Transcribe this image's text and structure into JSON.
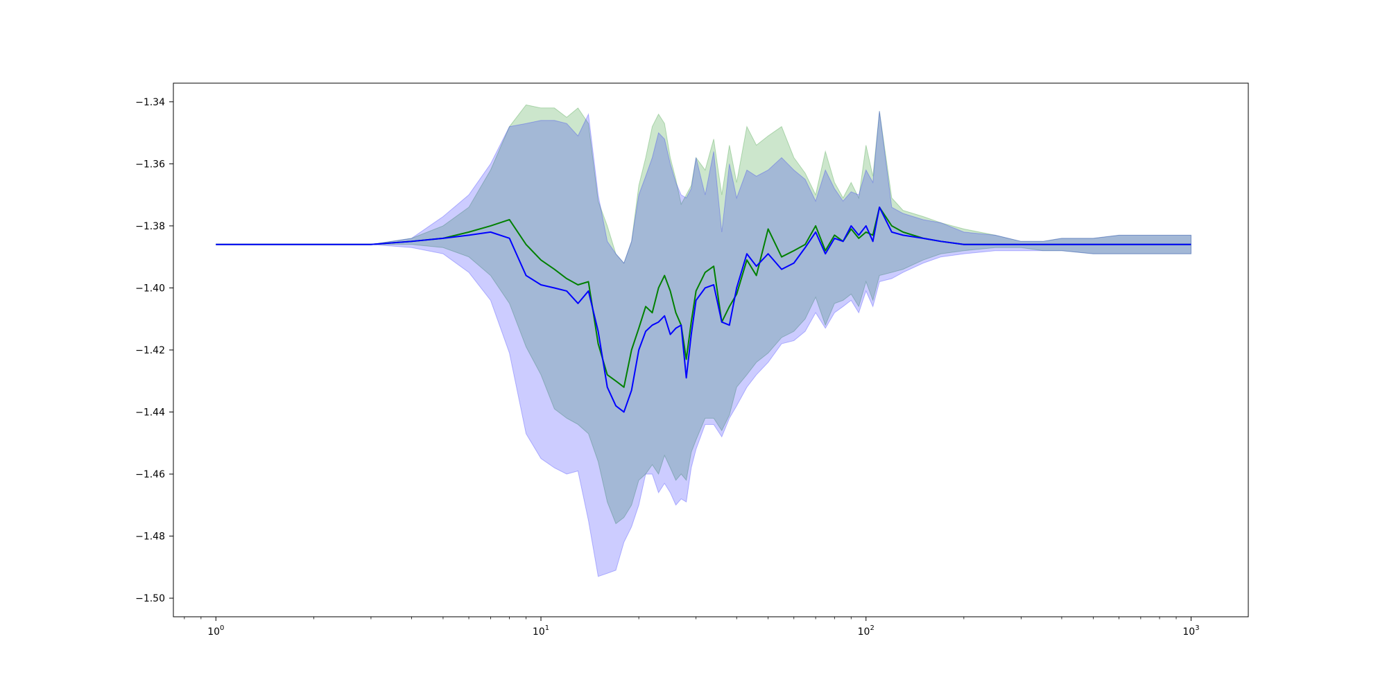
{
  "chart_data": {
    "type": "line",
    "title": "",
    "xlabel": "",
    "ylabel": "",
    "xscale": "log",
    "xlim": [
      0.74,
      1500
    ],
    "ylim": [
      -1.506,
      -1.334
    ],
    "grid": false,
    "legend": "none",
    "x_ticks": [
      1,
      10,
      100,
      1000
    ],
    "x_tick_labels": [
      {
        "base": "10",
        "exp": "0"
      },
      {
        "base": "10",
        "exp": "1"
      },
      {
        "base": "10",
        "exp": "2"
      },
      {
        "base": "10",
        "exp": "3"
      }
    ],
    "y_ticks": [
      -1.34,
      -1.36,
      -1.38,
      -1.4,
      -1.42,
      -1.44,
      -1.46,
      -1.48,
      -1.5
    ],
    "y_tick_labels": [
      "−1.34",
      "−1.36",
      "−1.38",
      "−1.40",
      "−1.42",
      "−1.44",
      "−1.46",
      "−1.48",
      "−1.50"
    ],
    "series": [
      {
        "color": "#008000",
        "band_color": "#008000",
        "band_opacity": 0.2,
        "x": [
          1,
          2,
          3,
          4,
          5,
          6,
          7,
          8,
          9,
          10,
          11,
          12,
          13,
          14,
          15,
          16,
          17,
          18,
          19,
          20,
          21,
          22,
          23,
          24,
          25,
          26,
          27,
          28,
          29,
          30,
          32,
          34,
          36,
          38,
          40,
          43,
          46,
          50,
          55,
          60,
          65,
          70,
          75,
          80,
          85,
          90,
          95,
          100,
          105,
          110,
          120,
          130,
          150,
          170,
          200,
          250,
          300,
          350,
          400,
          500,
          600,
          700,
          800,
          900,
          1000
        ],
        "mean": [
          -1.386,
          -1.386,
          -1.386,
          -1.385,
          -1.384,
          -1.382,
          -1.38,
          -1.378,
          -1.386,
          -1.391,
          -1.394,
          -1.397,
          -1.399,
          -1.398,
          -1.418,
          -1.428,
          -1.43,
          -1.432,
          -1.42,
          -1.413,
          -1.406,
          -1.408,
          -1.4,
          -1.396,
          -1.401,
          -1.408,
          -1.412,
          -1.423,
          -1.411,
          -1.401,
          -1.395,
          -1.393,
          -1.411,
          -1.406,
          -1.402,
          -1.391,
          -1.396,
          -1.381,
          -1.39,
          -1.388,
          -1.386,
          -1.38,
          -1.388,
          -1.383,
          -1.385,
          -1.381,
          -1.384,
          -1.382,
          -1.383,
          -1.374,
          -1.38,
          -1.382,
          -1.384,
          -1.385,
          -1.386,
          -1.386,
          -1.386,
          -1.386,
          -1.386,
          -1.386,
          -1.386,
          -1.386,
          -1.386,
          -1.386,
          -1.386
        ],
        "upper": [
          -1.386,
          -1.386,
          -1.386,
          -1.384,
          -1.38,
          -1.374,
          -1.362,
          -1.348,
          -1.341,
          -1.342,
          -1.342,
          -1.345,
          -1.342,
          -1.347,
          -1.372,
          -1.38,
          -1.389,
          -1.392,
          -1.385,
          -1.367,
          -1.358,
          -1.348,
          -1.344,
          -1.347,
          -1.358,
          -1.365,
          -1.373,
          -1.37,
          -1.367,
          -1.358,
          -1.362,
          -1.352,
          -1.37,
          -1.354,
          -1.366,
          -1.348,
          -1.354,
          -1.351,
          -1.348,
          -1.358,
          -1.363,
          -1.37,
          -1.356,
          -1.366,
          -1.371,
          -1.366,
          -1.371,
          -1.354,
          -1.364,
          -1.343,
          -1.371,
          -1.375,
          -1.377,
          -1.379,
          -1.381,
          -1.383,
          -1.385,
          -1.385,
          -1.384,
          -1.384,
          -1.383,
          -1.383,
          -1.383,
          -1.383,
          -1.383
        ],
        "lower": [
          -1.386,
          -1.386,
          -1.386,
          -1.386,
          -1.387,
          -1.39,
          -1.396,
          -1.405,
          -1.419,
          -1.428,
          -1.439,
          -1.442,
          -1.444,
          -1.447,
          -1.456,
          -1.469,
          -1.476,
          -1.474,
          -1.47,
          -1.462,
          -1.46,
          -1.457,
          -1.46,
          -1.454,
          -1.458,
          -1.462,
          -1.46,
          -1.462,
          -1.453,
          -1.449,
          -1.442,
          -1.442,
          -1.446,
          -1.441,
          -1.432,
          -1.428,
          -1.424,
          -1.421,
          -1.416,
          -1.414,
          -1.41,
          -1.403,
          -1.412,
          -1.405,
          -1.404,
          -1.402,
          -1.406,
          -1.398,
          -1.404,
          -1.396,
          -1.395,
          -1.394,
          -1.391,
          -1.389,
          -1.388,
          -1.387,
          -1.387,
          -1.388,
          -1.388,
          -1.389,
          -1.389,
          -1.389,
          -1.389,
          -1.389,
          -1.389
        ]
      },
      {
        "color": "#0000ff",
        "band_color": "#0000ff",
        "band_opacity": 0.2,
        "x": [
          1,
          2,
          3,
          4,
          5,
          6,
          7,
          8,
          9,
          10,
          11,
          12,
          13,
          14,
          15,
          16,
          17,
          18,
          19,
          20,
          21,
          22,
          23,
          24,
          25,
          26,
          27,
          28,
          29,
          30,
          32,
          34,
          36,
          38,
          40,
          43,
          46,
          50,
          55,
          60,
          65,
          70,
          75,
          80,
          85,
          90,
          95,
          100,
          105,
          110,
          120,
          130,
          150,
          170,
          200,
          250,
          300,
          350,
          400,
          500,
          600,
          700,
          800,
          900,
          1000
        ],
        "mean": [
          -1.386,
          -1.386,
          -1.386,
          -1.385,
          -1.384,
          -1.383,
          -1.382,
          -1.384,
          -1.396,
          -1.399,
          -1.4,
          -1.401,
          -1.405,
          -1.401,
          -1.414,
          -1.432,
          -1.438,
          -1.44,
          -1.433,
          -1.42,
          -1.414,
          -1.412,
          -1.411,
          -1.409,
          -1.415,
          -1.413,
          -1.412,
          -1.429,
          -1.415,
          -1.404,
          -1.4,
          -1.399,
          -1.411,
          -1.412,
          -1.4,
          -1.389,
          -1.393,
          -1.389,
          -1.394,
          -1.392,
          -1.387,
          -1.382,
          -1.389,
          -1.384,
          -1.385,
          -1.38,
          -1.383,
          -1.38,
          -1.385,
          -1.374,
          -1.382,
          -1.383,
          -1.384,
          -1.385,
          -1.386,
          -1.386,
          -1.386,
          -1.386,
          -1.386,
          -1.386,
          -1.386,
          -1.386,
          -1.386,
          -1.386,
          -1.386
        ],
        "upper": [
          -1.386,
          -1.386,
          -1.386,
          -1.384,
          -1.377,
          -1.37,
          -1.36,
          -1.348,
          -1.347,
          -1.346,
          -1.346,
          -1.347,
          -1.351,
          -1.344,
          -1.37,
          -1.385,
          -1.389,
          -1.392,
          -1.385,
          -1.37,
          -1.364,
          -1.358,
          -1.35,
          -1.352,
          -1.36,
          -1.366,
          -1.37,
          -1.371,
          -1.368,
          -1.358,
          -1.37,
          -1.356,
          -1.382,
          -1.36,
          -1.371,
          -1.362,
          -1.364,
          -1.362,
          -1.358,
          -1.362,
          -1.365,
          -1.372,
          -1.362,
          -1.368,
          -1.372,
          -1.369,
          -1.37,
          -1.362,
          -1.366,
          -1.343,
          -1.374,
          -1.376,
          -1.378,
          -1.379,
          -1.382,
          -1.383,
          -1.385,
          -1.385,
          -1.384,
          -1.384,
          -1.383,
          -1.383,
          -1.383,
          -1.383,
          -1.383
        ],
        "lower": [
          -1.386,
          -1.386,
          -1.386,
          -1.387,
          -1.389,
          -1.395,
          -1.404,
          -1.421,
          -1.447,
          -1.455,
          -1.458,
          -1.46,
          -1.459,
          -1.475,
          -1.493,
          -1.492,
          -1.491,
          -1.482,
          -1.477,
          -1.47,
          -1.46,
          -1.46,
          -1.466,
          -1.463,
          -1.466,
          -1.47,
          -1.468,
          -1.469,
          -1.458,
          -1.452,
          -1.444,
          -1.444,
          -1.448,
          -1.442,
          -1.438,
          -1.432,
          -1.428,
          -1.424,
          -1.418,
          -1.417,
          -1.414,
          -1.408,
          -1.413,
          -1.408,
          -1.406,
          -1.404,
          -1.408,
          -1.401,
          -1.406,
          -1.398,
          -1.397,
          -1.395,
          -1.392,
          -1.39,
          -1.389,
          -1.388,
          -1.388,
          -1.388,
          -1.388,
          -1.389,
          -1.389,
          -1.389,
          -1.389,
          -1.389,
          -1.389
        ]
      }
    ]
  }
}
